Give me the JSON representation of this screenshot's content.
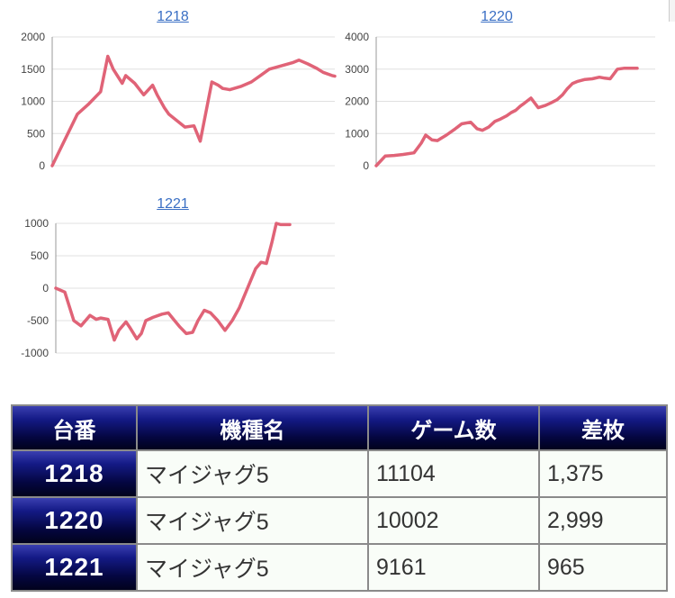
{
  "charts": [
    {
      "title": "1218",
      "type": "line",
      "ylim": [
        0,
        2000
      ],
      "yticks": [
        0,
        500,
        1000,
        1500,
        2000
      ],
      "tick_labels": [
        "0",
        "500",
        "1000",
        "1500",
        "2000"
      ],
      "x": [
        0,
        28,
        40,
        54,
        62,
        68,
        78,
        82,
        92,
        102,
        112,
        117,
        125,
        130,
        148,
        158,
        165,
        178,
        185,
        190,
        198,
        210,
        222,
        232,
        242,
        255,
        268,
        275,
        285,
        295,
        302,
        312,
        315
      ],
      "y": [
        0,
        800,
        950,
        1150,
        1700,
        1500,
        1280,
        1400,
        1280,
        1100,
        1250,
        1100,
        900,
        800,
        600,
        620,
        380,
        1300,
        1250,
        1200,
        1180,
        1230,
        1300,
        1400,
        1500,
        1550,
        1600,
        1640,
        1580,
        1510,
        1450,
        1400,
        1390
      ],
      "color": "#e06377"
    },
    {
      "title": "1220",
      "type": "line",
      "ylim": [
        0,
        4000
      ],
      "yticks": [
        0,
        1000,
        2000,
        3000,
        4000
      ],
      "tick_labels": [
        "0",
        "1000",
        "2000",
        "3000",
        "4000"
      ],
      "x": [
        0,
        10,
        20,
        30,
        42,
        50,
        55,
        62,
        68,
        72,
        78,
        88,
        95,
        105,
        112,
        118,
        125,
        132,
        138,
        145,
        150,
        155,
        160,
        165,
        172,
        180,
        188,
        194,
        201,
        207,
        212,
        218,
        224,
        232,
        240,
        248,
        254,
        260,
        268,
        276,
        284,
        290
      ],
      "y": [
        0,
        300,
        320,
        350,
        400,
        700,
        950,
        800,
        780,
        850,
        950,
        1150,
        1300,
        1350,
        1150,
        1100,
        1200,
        1380,
        1450,
        1550,
        1650,
        1720,
        1850,
        1950,
        2100,
        1800,
        1870,
        1950,
        2050,
        2200,
        2380,
        2550,
        2620,
        2680,
        2700,
        2750,
        2720,
        2700,
        3000,
        3030,
        3030,
        3030
      ],
      "color": "#e06377"
    },
    {
      "title": "1221",
      "type": "line",
      "ylim": [
        -1000,
        1000
      ],
      "yticks": [
        -1000,
        -500,
        0,
        500,
        1000
      ],
      "tick_labels": [
        "-1000",
        "-500",
        "0",
        "500",
        "1000"
      ],
      "x": [
        0,
        10,
        20,
        28,
        38,
        45,
        50,
        58,
        65,
        70,
        78,
        82,
        90,
        95,
        100,
        108,
        118,
        125,
        132,
        138,
        145,
        152,
        158,
        165,
        172,
        180,
        188,
        196,
        204,
        210,
        216,
        222,
        228,
        234,
        240,
        245,
        250,
        255,
        260
      ],
      "y": [
        0,
        -60,
        -500,
        -580,
        -420,
        -480,
        -460,
        -480,
        -800,
        -650,
        -520,
        -600,
        -780,
        -700,
        -500,
        -450,
        -400,
        -380,
        -500,
        -600,
        -700,
        -680,
        -500,
        -340,
        -380,
        -500,
        -650,
        -500,
        -300,
        -100,
        100,
        300,
        400,
        380,
        700,
        1000,
        980,
        980,
        980
      ],
      "color": "#e06377"
    }
  ],
  "table": {
    "headers": [
      "台番",
      "機種名",
      "ゲーム数",
      "差枚"
    ],
    "rows": [
      [
        "1218",
        "マイジャグ5",
        "11104",
        "1,375"
      ],
      [
        "1220",
        "マイジャグ5",
        "10002",
        "2,999"
      ],
      [
        "1221",
        "マイジャグ5",
        "9161",
        "965"
      ]
    ]
  }
}
